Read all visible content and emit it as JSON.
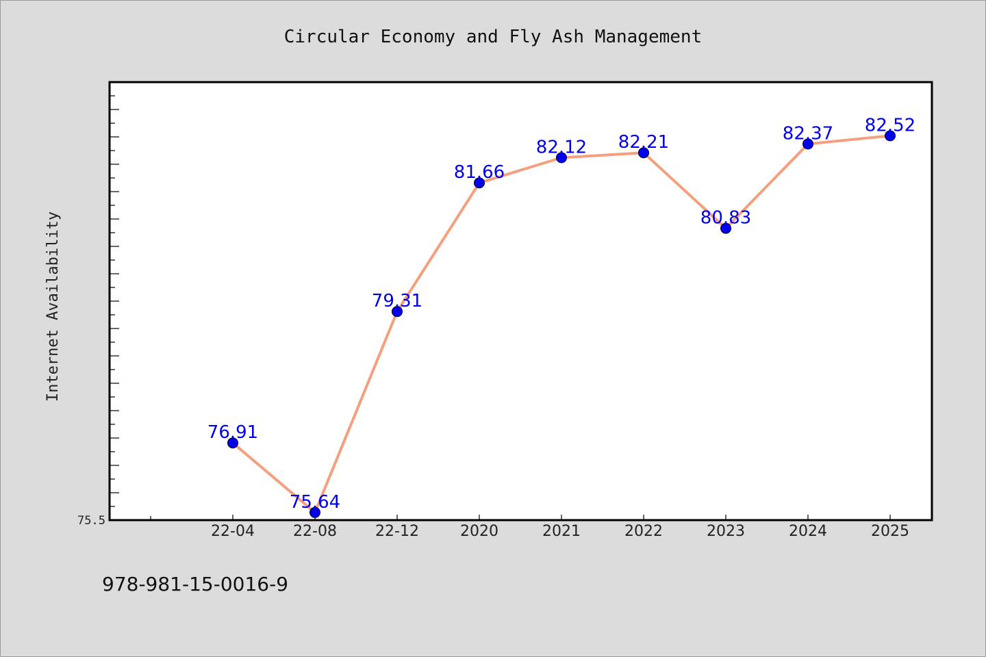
{
  "chart_data": {
    "type": "line",
    "title": "Circular Economy and Fly Ash Management",
    "xlabel": "",
    "ylabel": "Internet Availability",
    "categories": [
      "22-04",
      "22-08",
      "22-12",
      "2020",
      "2021",
      "2022",
      "2023",
      "2024",
      "2025"
    ],
    "series": [
      {
        "values": [
          76.91,
          75.64,
          79.31,
          81.66,
          82.12,
          82.21,
          80.83,
          82.37,
          82.52
        ],
        "data_labels": [
          "76.91",
          "75.64",
          "79.31",
          "81.66",
          "82.12",
          "82.21",
          "80.83",
          "82.37",
          "82.52"
        ],
        "line_color": "#f4a07f",
        "marker_color": "#0000ee",
        "label_color": "#0000ee"
      }
    ],
    "yticks": [
      {
        "value": 75.5,
        "label": "75.5"
      }
    ],
    "ylim": [
      75.5,
      83.5
    ],
    "grid": false,
    "legend": "none"
  },
  "footer": {
    "isbn": "978-981-15-0016-9"
  }
}
